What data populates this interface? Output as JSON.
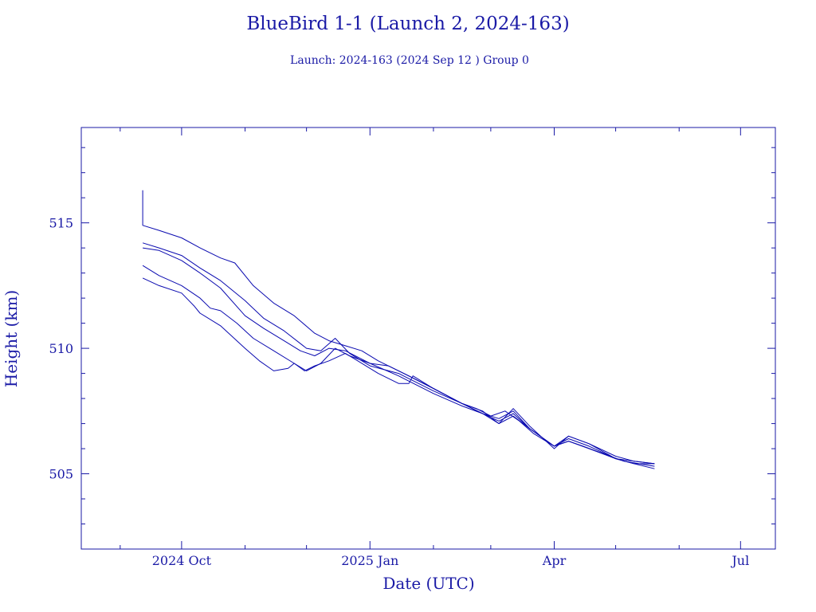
{
  "chart_data": {
    "type": "line",
    "title": "BlueBird 1-1 (Launch 2, 2024-163)",
    "subtitle": "Launch: 2024-163  (2024 Sep 12 )  Group 0",
    "xlabel": "Date (UTC)",
    "ylabel": "Height (km)",
    "x_is_date": true,
    "xlim": [
      "2024-08-13",
      "2025-07-18"
    ],
    "ylim": [
      502.0,
      518.8
    ],
    "x_ticks": [
      {
        "date": "2024-10-01",
        "label": "2024 Oct"
      },
      {
        "date": "2025-01-01",
        "label": "2025 Jan"
      },
      {
        "date": "2025-04-01",
        "label": "Apr"
      },
      {
        "date": "2025-07-01",
        "label": "Jul"
      }
    ],
    "y_ticks": [
      505,
      510,
      515
    ],
    "grid": false,
    "colors": {
      "axis": "#1a1aa6",
      "series": "#0a0ab0",
      "text": "#1a1aa6"
    },
    "series": [
      {
        "values": [
          [
            "2024-09-12",
            516.3
          ],
          [
            "2024-09-12",
            514.9
          ],
          [
            "2024-09-20",
            514.7
          ],
          [
            "2024-10-01",
            514.4
          ],
          [
            "2024-10-10",
            514.0
          ],
          [
            "2024-10-20",
            513.6
          ],
          [
            "2024-10-27",
            513.4
          ],
          [
            "2024-11-05",
            512.5
          ],
          [
            "2024-11-15",
            511.8
          ],
          [
            "2024-11-25",
            511.3
          ],
          [
            "2024-12-05",
            510.6
          ],
          [
            "2024-12-12",
            510.3
          ],
          [
            "2024-12-20",
            510.1
          ],
          [
            "2024-12-28",
            509.9
          ],
          [
            "2025-01-05",
            509.5
          ],
          [
            "2025-01-15",
            509.1
          ],
          [
            "2025-02-01",
            508.4
          ],
          [
            "2025-02-15",
            507.8
          ],
          [
            "2025-02-22",
            507.6
          ],
          [
            "2025-03-01",
            507.3
          ],
          [
            "2025-03-08",
            507.5
          ],
          [
            "2025-03-15",
            507.1
          ],
          [
            "2025-03-22",
            506.6
          ],
          [
            "2025-04-01",
            506.1
          ],
          [
            "2025-04-08",
            506.3
          ],
          [
            "2025-04-15",
            506.1
          ],
          [
            "2025-04-25",
            505.8
          ],
          [
            "2025-05-05",
            505.5
          ],
          [
            "2025-05-20",
            505.3
          ]
        ]
      },
      {
        "values": [
          [
            "2024-09-12",
            514.2
          ],
          [
            "2024-09-20",
            514.0
          ],
          [
            "2024-10-01",
            513.7
          ],
          [
            "2024-10-10",
            513.2
          ],
          [
            "2024-10-20",
            512.7
          ],
          [
            "2024-11-01",
            511.9
          ],
          [
            "2024-11-10",
            511.2
          ],
          [
            "2024-11-20",
            510.7
          ],
          [
            "2024-12-01",
            510.0
          ],
          [
            "2024-12-08",
            509.9
          ],
          [
            "2024-12-15",
            510.4
          ],
          [
            "2024-12-22",
            509.8
          ],
          [
            "2025-01-01",
            509.3
          ],
          [
            "2025-01-15",
            509.0
          ],
          [
            "2025-02-01",
            508.3
          ],
          [
            "2025-02-15",
            507.8
          ],
          [
            "2025-02-25",
            507.5
          ],
          [
            "2025-03-05",
            507.0
          ],
          [
            "2025-03-12",
            507.6
          ],
          [
            "2025-03-20",
            506.9
          ],
          [
            "2025-04-01",
            506.0
          ],
          [
            "2025-04-08",
            506.5
          ],
          [
            "2025-04-18",
            506.2
          ],
          [
            "2025-05-01",
            505.7
          ],
          [
            "2025-05-10",
            505.5
          ],
          [
            "2025-05-20",
            505.4
          ]
        ]
      },
      {
        "values": [
          [
            "2024-09-12",
            514.0
          ],
          [
            "2024-09-20",
            513.9
          ],
          [
            "2024-10-01",
            513.5
          ],
          [
            "2024-10-10",
            513.0
          ],
          [
            "2024-10-20",
            512.4
          ],
          [
            "2024-11-01",
            511.3
          ],
          [
            "2024-11-10",
            510.8
          ],
          [
            "2024-11-20",
            510.3
          ],
          [
            "2024-11-28",
            509.9
          ],
          [
            "2024-12-05",
            509.7
          ],
          [
            "2024-12-12",
            510.0
          ],
          [
            "2024-12-20",
            509.9
          ],
          [
            "2025-01-01",
            509.4
          ],
          [
            "2025-01-15",
            508.9
          ],
          [
            "2025-02-01",
            508.2
          ],
          [
            "2025-02-15",
            507.7
          ],
          [
            "2025-02-25",
            507.4
          ],
          [
            "2025-03-05",
            507.2
          ],
          [
            "2025-03-12",
            507.5
          ],
          [
            "2025-03-20",
            506.8
          ],
          [
            "2025-04-01",
            506.1
          ],
          [
            "2025-04-08",
            506.3
          ],
          [
            "2025-04-18",
            506.0
          ],
          [
            "2025-05-01",
            505.6
          ],
          [
            "2025-05-10",
            505.4
          ],
          [
            "2025-05-20",
            505.4
          ]
        ]
      },
      {
        "values": [
          [
            "2024-09-12",
            513.3
          ],
          [
            "2024-09-20",
            512.9
          ],
          [
            "2024-10-01",
            512.5
          ],
          [
            "2024-10-10",
            512.0
          ],
          [
            "2024-10-15",
            511.6
          ],
          [
            "2024-10-20",
            511.5
          ],
          [
            "2024-10-28",
            511.0
          ],
          [
            "2024-11-05",
            510.4
          ],
          [
            "2024-11-15",
            509.9
          ],
          [
            "2024-11-25",
            509.4
          ],
          [
            "2024-12-01",
            509.1
          ],
          [
            "2024-12-08",
            509.4
          ],
          [
            "2024-12-15",
            510.0
          ],
          [
            "2024-12-22",
            509.7
          ],
          [
            "2025-01-01",
            509.4
          ],
          [
            "2025-01-10",
            509.3
          ],
          [
            "2025-01-20",
            508.9
          ],
          [
            "2025-02-01",
            508.4
          ],
          [
            "2025-02-15",
            507.8
          ],
          [
            "2025-02-25",
            507.4
          ],
          [
            "2025-03-05",
            507.0
          ],
          [
            "2025-03-12",
            507.3
          ],
          [
            "2025-03-20",
            506.8
          ],
          [
            "2025-04-01",
            506.1
          ],
          [
            "2025-04-08",
            506.4
          ],
          [
            "2025-04-18",
            506.1
          ],
          [
            "2025-05-01",
            505.6
          ],
          [
            "2025-05-10",
            505.4
          ],
          [
            "2025-05-20",
            505.2
          ]
        ]
      },
      {
        "values": [
          [
            "2024-09-12",
            512.8
          ],
          [
            "2024-09-20",
            512.5
          ],
          [
            "2024-10-01",
            512.2
          ],
          [
            "2024-10-07",
            511.7
          ],
          [
            "2024-10-10",
            511.4
          ],
          [
            "2024-10-20",
            510.9
          ],
          [
            "2024-11-01",
            510.0
          ],
          [
            "2024-11-08",
            509.5
          ],
          [
            "2024-11-15",
            509.1
          ],
          [
            "2024-11-22",
            509.2
          ],
          [
            "2024-11-25",
            509.4
          ],
          [
            "2024-11-30",
            509.1
          ],
          [
            "2024-12-05",
            509.3
          ],
          [
            "2024-12-12",
            509.5
          ],
          [
            "2024-12-20",
            509.8
          ],
          [
            "2024-12-26",
            509.5
          ],
          [
            "2025-01-05",
            509.0
          ],
          [
            "2025-01-15",
            508.6
          ],
          [
            "2025-01-20",
            508.6
          ],
          [
            "2025-01-22",
            508.9
          ],
          [
            "2025-02-01",
            508.4
          ],
          [
            "2025-02-15",
            507.8
          ],
          [
            "2025-02-25",
            507.4
          ],
          [
            "2025-03-05",
            507.1
          ],
          [
            "2025-03-12",
            507.4
          ],
          [
            "2025-03-20",
            506.8
          ],
          [
            "2025-04-01",
            506.1
          ],
          [
            "2025-04-08",
            506.5
          ],
          [
            "2025-04-18",
            506.2
          ],
          [
            "2025-05-01",
            505.6
          ],
          [
            "2025-05-10",
            505.5
          ],
          [
            "2025-05-20",
            505.4
          ]
        ]
      }
    ]
  }
}
